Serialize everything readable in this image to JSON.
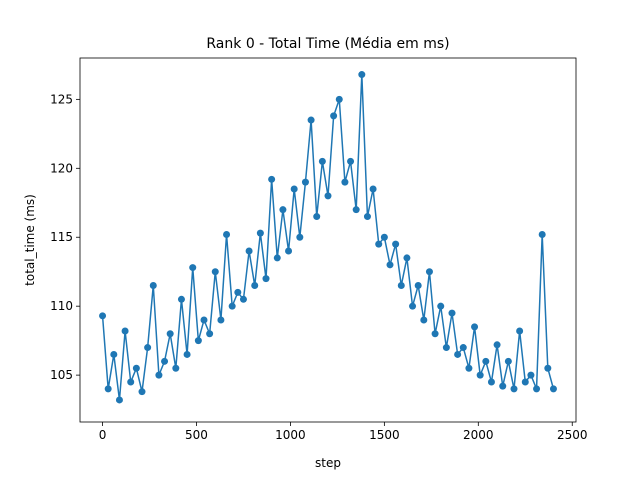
{
  "chart_data": {
    "type": "line",
    "title": "Rank 0 - Total Time (Média em ms)",
    "xlabel": "step",
    "ylabel": "total_time (ms)",
    "x": [
      0,
      30,
      60,
      90,
      120,
      150,
      180,
      210,
      240,
      270,
      300,
      330,
      360,
      390,
      420,
      450,
      480,
      510,
      540,
      570,
      600,
      630,
      660,
      690,
      720,
      750,
      780,
      810,
      840,
      870,
      900,
      930,
      960,
      990,
      1020,
      1050,
      1080,
      1110,
      1140,
      1170,
      1200,
      1230,
      1260,
      1290,
      1320,
      1350,
      1380,
      1410,
      1440,
      1470,
      1500,
      1530,
      1560,
      1590,
      1620,
      1650,
      1680,
      1710,
      1740,
      1770,
      1800,
      1830,
      1860,
      1890,
      1920,
      1950,
      1980,
      2010,
      2040,
      2070,
      2100,
      2130,
      2160,
      2190,
      2220,
      2250,
      2280,
      2310,
      2340,
      2370,
      2400
    ],
    "series": [
      {
        "color": "#1f77b4",
        "values": [
          109.3,
          104,
          106.5,
          103.2,
          108.2,
          104.5,
          105.5,
          103.8,
          107,
          111.5,
          105,
          106,
          108,
          105.5,
          110.5,
          106.5,
          112.8,
          107.5,
          109,
          108,
          112.5,
          109,
          115.2,
          110,
          111,
          110.5,
          114,
          111.5,
          115.3,
          112,
          119.2,
          113.5,
          117,
          114,
          118.5,
          115,
          119,
          123.5,
          116.5,
          120.5,
          118,
          123.8,
          125,
          119,
          120.5,
          117,
          126.8,
          116.5,
          118.5,
          114.5,
          115,
          113,
          114.5,
          111.5,
          113.5,
          110,
          111.5,
          109,
          112.5,
          108,
          110,
          107,
          109.5,
          106.5,
          107,
          105.5,
          108.5,
          105,
          106,
          104.5,
          107.2,
          104.2,
          106,
          104,
          108.2,
          104.5,
          105,
          104,
          115.2,
          105.5,
          104
        ]
      }
    ],
    "xlim": [
      -120,
      2520
    ],
    "ylim": [
      101.6,
      128
    ],
    "xticks": [
      0,
      500,
      1000,
      1500,
      2000,
      2500
    ],
    "yticks": [
      105,
      110,
      115,
      120,
      125
    ]
  }
}
